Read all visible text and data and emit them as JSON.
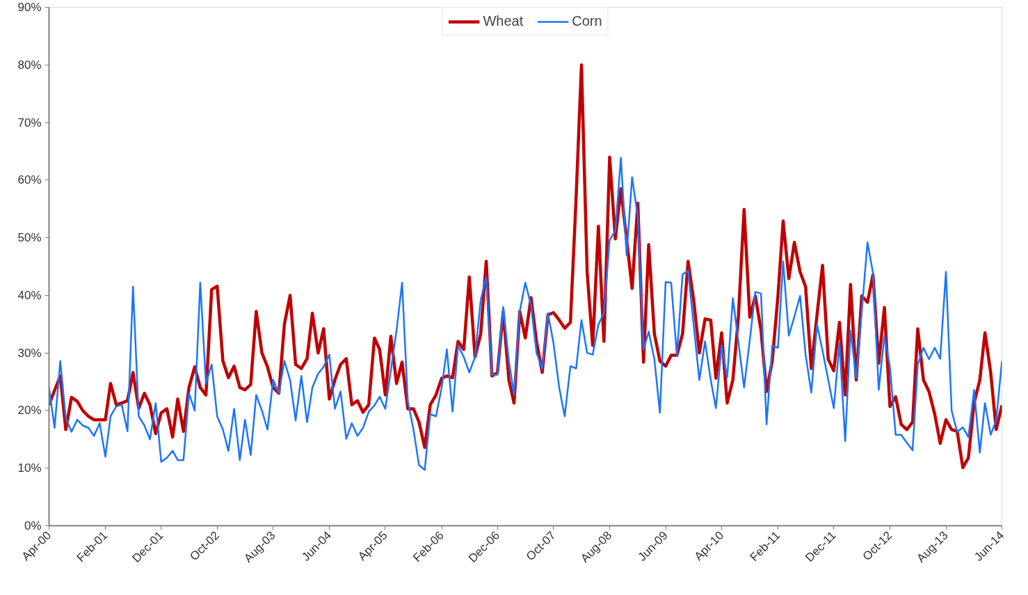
{
  "chart_data": {
    "type": "line",
    "x": [
      "2000-04",
      "2000-05",
      "2000-06",
      "2000-07",
      "2000-08",
      "2000-09",
      "2000-10",
      "2000-11",
      "2000-12",
      "2001-01",
      "2001-02",
      "2001-03",
      "2001-04",
      "2001-05",
      "2001-06",
      "2001-07",
      "2001-08",
      "2001-09",
      "2001-10",
      "2001-11",
      "2001-12",
      "2002-01",
      "2002-02",
      "2002-03",
      "2002-04",
      "2002-05",
      "2002-06",
      "2002-07",
      "2002-08",
      "2002-09",
      "2002-10",
      "2002-11",
      "2002-12",
      "2003-01",
      "2003-02",
      "2003-03",
      "2003-04",
      "2003-05",
      "2003-06",
      "2003-07",
      "2003-08",
      "2003-09",
      "2003-10",
      "2003-11",
      "2003-12",
      "2004-01",
      "2004-02",
      "2004-03",
      "2004-04",
      "2004-05",
      "2004-06",
      "2004-07",
      "2004-08",
      "2004-09",
      "2004-10",
      "2004-11",
      "2004-12",
      "2005-01",
      "2005-02",
      "2005-03",
      "2005-04",
      "2005-05",
      "2005-06",
      "2005-07",
      "2005-08",
      "2005-09",
      "2005-10",
      "2005-11",
      "2005-12",
      "2006-01",
      "2006-02",
      "2006-03",
      "2006-04",
      "2006-05",
      "2006-06",
      "2006-07",
      "2006-08",
      "2006-09",
      "2006-10",
      "2006-11",
      "2006-12",
      "2007-01",
      "2007-02",
      "2007-03",
      "2007-04",
      "2007-05",
      "2007-06",
      "2007-07",
      "2007-08",
      "2007-09",
      "2007-10",
      "2007-11",
      "2007-12",
      "2008-01",
      "2008-02",
      "2008-03",
      "2008-04",
      "2008-05",
      "2008-06",
      "2008-07",
      "2008-08",
      "2008-09",
      "2008-10",
      "2008-11",
      "2008-12",
      "2009-01",
      "2009-02",
      "2009-03",
      "2009-04",
      "2009-05",
      "2009-06",
      "2009-07",
      "2009-08",
      "2009-09",
      "2009-10",
      "2009-11",
      "2009-12",
      "2010-01",
      "2010-02",
      "2010-03",
      "2010-04",
      "2010-05",
      "2010-06",
      "2010-07",
      "2010-08",
      "2010-09",
      "2010-10",
      "2010-11",
      "2010-12",
      "2011-01",
      "2011-02",
      "2011-03",
      "2011-04",
      "2011-05",
      "2011-06",
      "2011-07",
      "2011-08",
      "2011-09",
      "2011-10",
      "2011-11",
      "2011-12",
      "2012-01",
      "2012-02",
      "2012-03",
      "2012-04",
      "2012-05",
      "2012-06",
      "2012-07",
      "2012-08",
      "2012-09",
      "2012-10",
      "2012-11",
      "2012-12",
      "2013-01",
      "2013-02",
      "2013-03",
      "2013-04",
      "2013-05",
      "2013-06",
      "2013-07",
      "2013-08",
      "2013-09",
      "2013-10",
      "2013-11",
      "2013-12",
      "2014-01",
      "2014-02",
      "2014-03",
      "2014-04",
      "2014-05",
      "2014-06"
    ],
    "series": [
      {
        "name": "Wheat",
        "color": "#c00000",
        "values": [
          21,
          23.5,
          26,
          16.7,
          22.3,
          21.6,
          20,
          19,
          18.4,
          18.4,
          18.4,
          24.7,
          21,
          21.3,
          21.7,
          26.6,
          20.4,
          23,
          21,
          16,
          19.6,
          20.3,
          15.4,
          22,
          16.4,
          24,
          27.6,
          24,
          22.7,
          41,
          41.6,
          28.6,
          25.7,
          27.7,
          24,
          23.6,
          24.5,
          37.2,
          30,
          27.6,
          24,
          23,
          35,
          40,
          28,
          27.3,
          29,
          36.9,
          30,
          34.2,
          22,
          25.3,
          28,
          29,
          21,
          21.7,
          19.7,
          21,
          32.6,
          30.6,
          22.7,
          32.9,
          24.7,
          28.4,
          20.3,
          20.3,
          18,
          13.6,
          21,
          22.7,
          25.6,
          26,
          25.7,
          32,
          30.6,
          43.2,
          29.3,
          33.3,
          45.9,
          26,
          26.6,
          37.2,
          25.3,
          21.3,
          37.2,
          32.6,
          39.6,
          32,
          26.6,
          36.6,
          37,
          35.7,
          34.3,
          35.3,
          57,
          80,
          43.9,
          31.3,
          52,
          32,
          64,
          49.8,
          58.5,
          49.8,
          41.2,
          56,
          28.4,
          48.8,
          33.3,
          28.6,
          27.7,
          29.6,
          29.6,
          33.3,
          45.9,
          39,
          30,
          35.9,
          35.7,
          25.6,
          33.5,
          21.3,
          25.3,
          36.2,
          54.9,
          36.2,
          39.9,
          33.9,
          23.3,
          28.6,
          39.9,
          52.9,
          42.9,
          49.2,
          44.1,
          41.5,
          27.3,
          36.6,
          45.2,
          28.9,
          26.9,
          35.3,
          22.7,
          41.9,
          25.3,
          39.9,
          38.8,
          43.6,
          28.2,
          37.9,
          20.7,
          22.4,
          17.6,
          16.7,
          18,
          34.2,
          25.3,
          23.3,
          19.4,
          14.3,
          18.4,
          16.7,
          16.4,
          10.1,
          11.8,
          21.3,
          25.3,
          33.5,
          26.6,
          16.7,
          20.9
        ]
      },
      {
        "name": "Corn",
        "color": "#1a75ff",
        "values": [
          24,
          17,
          28.6,
          18.7,
          16.3,
          18.4,
          17.4,
          17,
          15.6,
          17.8,
          12,
          19,
          20.7,
          21,
          16.4,
          41.5,
          19,
          17.4,
          15,
          21.3,
          11.1,
          11.8,
          13,
          11.4,
          11.4,
          23,
          20,
          42.2,
          24.7,
          28,
          19,
          16.7,
          13,
          20.3,
          11.4,
          18.4,
          12.3,
          22.7,
          20,
          16.7,
          25.3,
          23,
          28.6,
          25.3,
          18.3,
          26,
          18,
          24,
          26.4,
          27.6,
          29.7,
          20.3,
          23.3,
          15.1,
          17.8,
          15.6,
          17,
          19.8,
          20.9,
          22.4,
          20.3,
          27,
          33.9,
          42.2,
          21.6,
          16.7,
          10.5,
          9.7,
          19.4,
          19,
          24,
          30.6,
          19.8,
          31.3,
          29.3,
          26.6,
          29.3,
          39.2,
          43.2,
          26.2,
          26.2,
          38,
          28.6,
          22.7,
          37.2,
          42.2,
          38.3,
          30,
          27.3,
          36.9,
          31.7,
          24,
          19,
          27.7,
          27.3,
          35.7,
          30,
          29.7,
          34.9,
          37,
          49.6,
          51.2,
          63.9,
          47,
          60.5,
          53.6,
          30.6,
          33.7,
          28.9,
          19.6,
          42.3,
          42.2,
          29.6,
          43.6,
          44.3,
          34.6,
          25.3,
          32,
          25.3,
          20.4,
          31.3,
          25.7,
          39.5,
          31.9,
          24,
          32.2,
          40.6,
          40.3,
          17.6,
          31.3,
          30.9,
          45.9,
          33,
          36.3,
          39.9,
          29.7,
          23.1,
          34.9,
          30.4,
          25.3,
          20.4,
          31.7,
          14.7,
          33.9,
          25.6,
          37.2,
          49.2,
          43.9,
          23.6,
          33,
          27.6,
          15.8,
          15.8,
          14.4,
          13.1,
          28,
          30.9,
          28.9,
          30.9,
          29,
          44.1,
          20,
          16.3,
          17.1,
          15.4,
          23.6,
          12.7,
          21.3,
          15.8,
          18.3,
          28.6
        ]
      }
    ],
    "xlim": [
      "2000-04",
      "2014-06"
    ],
    "xticks": [
      {
        "value": "2000-04",
        "label": "Apr-00"
      },
      {
        "value": "2001-02",
        "label": "Feb-01"
      },
      {
        "value": "2001-12",
        "label": "Dec-01"
      },
      {
        "value": "2002-10",
        "label": "Oct-02"
      },
      {
        "value": "2003-08",
        "label": "Aug-03"
      },
      {
        "value": "2004-06",
        "label": "Jun-04"
      },
      {
        "value": "2005-04",
        "label": "Apr-05"
      },
      {
        "value": "2006-02",
        "label": "Feb-06"
      },
      {
        "value": "2006-12",
        "label": "Dec-06"
      },
      {
        "value": "2007-10",
        "label": "Oct-07"
      },
      {
        "value": "2008-08",
        "label": "Aug-08"
      },
      {
        "value": "2009-06",
        "label": "Jun-09"
      },
      {
        "value": "2010-04",
        "label": "Apr-10"
      },
      {
        "value": "2011-02",
        "label": "Feb-11"
      },
      {
        "value": "2011-12",
        "label": "Dec-11"
      },
      {
        "value": "2012-10",
        "label": "Oct-12"
      },
      {
        "value": "2013-08",
        "label": "Aug-13"
      },
      {
        "value": "2014-06",
        "label": "Jun-14"
      }
    ],
    "ylim": [
      0,
      90
    ],
    "yticks": [
      {
        "value": 0,
        "label": "0%"
      },
      {
        "value": 10,
        "label": "10%"
      },
      {
        "value": 20,
        "label": "20%"
      },
      {
        "value": 30,
        "label": "30%"
      },
      {
        "value": 40,
        "label": "40%"
      },
      {
        "value": 50,
        "label": "50%"
      },
      {
        "value": 60,
        "label": "60%"
      },
      {
        "value": 70,
        "label": "70%"
      },
      {
        "value": 80,
        "label": "80%"
      },
      {
        "value": 90,
        "label": "90%"
      }
    ],
    "legend": "top",
    "grid": false,
    "marker": "none",
    "line_style": "solid"
  }
}
